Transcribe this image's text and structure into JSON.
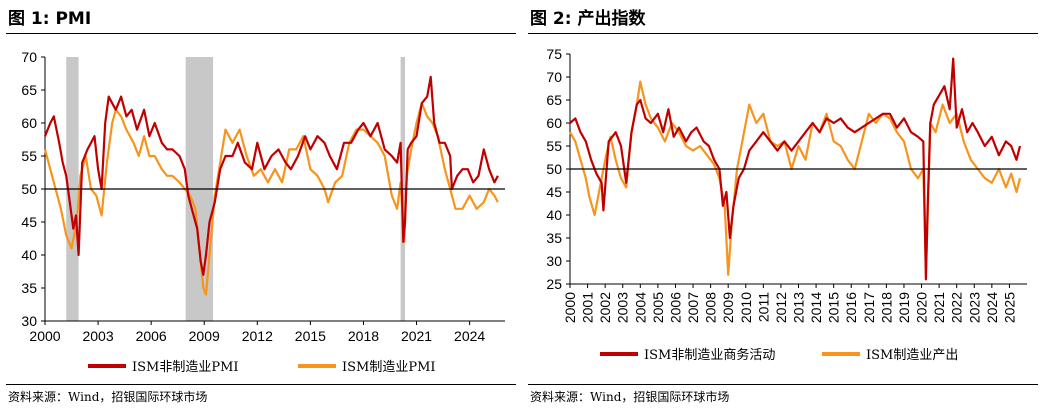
{
  "source_note": "资料来源：Wind，招银国际环球市场",
  "charts": [
    {
      "title": "图 1: PMI",
      "legend": [
        "ISM非制造业PMI",
        "ISM制造业PMI"
      ],
      "colors": {
        "series1": "#c00000",
        "series2": "#f7941d",
        "recession": "#c8c8c8",
        "axis": "#000000"
      }
    },
    {
      "title": "图 2: 产出指数",
      "legend": [
        "ISM非制造业商务活动",
        "ISM制造业产出"
      ],
      "colors": {
        "series1": "#c00000",
        "series2": "#f7941d",
        "axis": "#000000"
      }
    }
  ],
  "chart_data": [
    {
      "type": "line",
      "xlim": [
        2000,
        2026
      ],
      "ylim": [
        30,
        70
      ],
      "y_ticks": [
        30,
        35,
        40,
        45,
        50,
        55,
        60,
        65,
        70
      ],
      "x_ticks": [
        "2000",
        "2003",
        "2006",
        "2009",
        "2012",
        "2015",
        "2018",
        "2021",
        "2024"
      ],
      "x_tick_values": [
        2000,
        2003,
        2006,
        2009,
        2012,
        2015,
        2018,
        2021,
        2024
      ],
      "reference_line": 50,
      "recessions": [
        [
          2001.2,
          2001.9
        ],
        [
          2007.95,
          2009.5
        ],
        [
          2020.1,
          2020.35
        ]
      ],
      "series": [
        {
          "name": "ISM非制造业PMI",
          "x": [
            2000.0,
            2000.3,
            2000.5,
            2000.8,
            2001.0,
            2001.2,
            2001.4,
            2001.6,
            2001.75,
            2001.9,
            2002.1,
            2002.4,
            2002.8,
            2003.0,
            2003.2,
            2003.4,
            2003.6,
            2003.8,
            2004.0,
            2004.3,
            2004.6,
            2004.9,
            2005.2,
            2005.6,
            2005.9,
            2006.2,
            2006.6,
            2006.9,
            2007.2,
            2007.6,
            2007.9,
            2008.1,
            2008.3,
            2008.6,
            2008.8,
            2008.95,
            2009.1,
            2009.3,
            2009.6,
            2009.9,
            2010.2,
            2010.6,
            2010.9,
            2011.3,
            2011.7,
            2012.0,
            2012.4,
            2012.8,
            2013.2,
            2013.6,
            2013.9,
            2014.3,
            2014.7,
            2015.0,
            2015.4,
            2015.8,
            2016.1,
            2016.5,
            2016.9,
            2017.3,
            2017.7,
            2018.0,
            2018.4,
            2018.8,
            2019.2,
            2019.6,
            2019.9,
            2020.1,
            2020.25,
            2020.35,
            2020.5,
            2020.7,
            2021.0,
            2021.3,
            2021.6,
            2021.8,
            2022.0,
            2022.3,
            2022.6,
            2022.9,
            2023.0,
            2023.3,
            2023.6,
            2023.9,
            2024.2,
            2024.5,
            2024.8,
            2025.1,
            2025.4,
            2025.6
          ],
          "values": [
            58,
            60,
            61,
            57,
            54,
            52,
            48,
            44,
            46,
            40,
            54,
            56,
            58,
            53,
            50,
            60,
            64,
            63,
            62,
            64,
            61,
            62,
            59,
            62,
            58,
            60,
            57,
            56,
            56,
            55,
            53,
            49,
            47,
            44,
            39,
            37,
            40,
            45,
            48,
            53,
            55,
            55,
            57,
            54,
            53,
            57,
            53,
            55,
            56,
            54,
            53,
            55,
            58,
            56,
            58,
            57,
            55,
            53,
            57,
            57,
            59,
            60,
            58,
            60,
            56,
            55,
            54,
            57,
            42,
            45,
            56,
            57,
            58,
            63,
            64,
            67,
            60,
            57,
            57,
            55,
            50,
            52,
            53,
            53,
            51,
            52,
            56,
            53,
            51,
            52
          ]
        },
        {
          "name": "ISM制造业PMI",
          "x": [
            2000.0,
            2000.3,
            2000.6,
            2000.9,
            2001.2,
            2001.5,
            2001.8,
            2002.0,
            2002.3,
            2002.6,
            2002.9,
            2003.2,
            2003.5,
            2003.8,
            2004.0,
            2004.3,
            2004.6,
            2005.0,
            2005.3,
            2005.6,
            2005.9,
            2006.2,
            2006.6,
            2006.9,
            2007.2,
            2007.6,
            2007.9,
            2008.2,
            2008.5,
            2008.8,
            2008.95,
            2009.1,
            2009.3,
            2009.6,
            2009.9,
            2010.2,
            2010.6,
            2011.0,
            2011.4,
            2011.8,
            2012.2,
            2012.6,
            2013.0,
            2013.4,
            2013.8,
            2014.2,
            2014.6,
            2015.0,
            2015.4,
            2015.8,
            2016.0,
            2016.4,
            2016.8,
            2017.2,
            2017.6,
            2018.0,
            2018.4,
            2018.8,
            2019.2,
            2019.6,
            2019.9,
            2020.1,
            2020.3,
            2020.45,
            2020.7,
            2021.0,
            2021.3,
            2021.6,
            2021.9,
            2022.2,
            2022.6,
            2022.9,
            2023.2,
            2023.6,
            2024.0,
            2024.4,
            2024.8,
            2025.1,
            2025.4,
            2025.6
          ],
          "values": [
            56,
            53,
            50,
            47,
            43,
            41,
            45,
            52,
            55,
            50,
            49,
            46,
            54,
            60,
            62,
            61,
            59,
            57,
            55,
            58,
            55,
            55,
            53,
            52,
            52,
            51,
            50,
            49,
            47,
            39,
            35,
            34,
            40,
            49,
            54,
            59,
            57,
            59,
            55,
            52,
            53,
            51,
            53,
            51,
            56,
            56,
            58,
            53,
            52,
            50,
            48,
            51,
            52,
            57,
            59,
            59,
            58,
            57,
            55,
            49,
            47,
            51,
            42,
            52,
            56,
            60,
            63,
            61,
            60,
            58,
            53,
            50,
            47,
            47,
            49,
            47,
            48,
            50,
            49,
            48
          ]
        }
      ]
    },
    {
      "type": "line",
      "xlim": [
        2000,
        2026
      ],
      "ylim": [
        25,
        75
      ],
      "y_ticks": [
        25,
        30,
        35,
        40,
        45,
        50,
        55,
        60,
        65,
        70,
        75
      ],
      "x_ticks": [
        "2000",
        "2001",
        "2002",
        "2003",
        "2004",
        "2005",
        "2006",
        "2007",
        "2008",
        "2009",
        "2010",
        "2011",
        "2012",
        "2013",
        "2014",
        "2015",
        "2016",
        "2017",
        "2018",
        "2019",
        "2020",
        "2021",
        "2022",
        "2023",
        "2024",
        "2025"
      ],
      "x_tick_values": [
        2000,
        2001,
        2002,
        2003,
        2004,
        2005,
        2006,
        2007,
        2008,
        2009,
        2010,
        2011,
        2012,
        2013,
        2014,
        2015,
        2016,
        2017,
        2018,
        2019,
        2020,
        2021,
        2022,
        2023,
        2024,
        2025
      ],
      "reference_line": 50,
      "series": [
        {
          "name": "ISM非制造业商务活动",
          "x": [
            2000.0,
            2000.3,
            2000.6,
            2000.9,
            2001.2,
            2001.5,
            2001.8,
            2001.9,
            2002.2,
            2002.6,
            2002.9,
            2003.2,
            2003.5,
            2003.8,
            2004.0,
            2004.3,
            2004.6,
            2005.0,
            2005.3,
            2005.6,
            2005.9,
            2006.2,
            2006.6,
            2006.9,
            2007.2,
            2007.6,
            2007.9,
            2008.2,
            2008.5,
            2008.7,
            2008.9,
            2009.1,
            2009.3,
            2009.6,
            2009.9,
            2010.2,
            2010.6,
            2011.0,
            2011.4,
            2011.8,
            2012.2,
            2012.6,
            2013.0,
            2013.4,
            2013.8,
            2014.2,
            2014.6,
            2015.0,
            2015.4,
            2015.8,
            2016.2,
            2016.6,
            2017.0,
            2017.4,
            2017.8,
            2018.2,
            2018.6,
            2019.0,
            2019.4,
            2019.8,
            2020.1,
            2020.25,
            2020.35,
            2020.5,
            2020.7,
            2021.0,
            2021.3,
            2021.6,
            2021.8,
            2022.0,
            2022.3,
            2022.6,
            2022.9,
            2023.2,
            2023.6,
            2024.0,
            2024.4,
            2024.8,
            2025.1,
            2025.4,
            2025.6
          ],
          "values": [
            60,
            61,
            58,
            56,
            52,
            49,
            47,
            41,
            56,
            58,
            55,
            47,
            58,
            64,
            65,
            61,
            60,
            62,
            58,
            63,
            57,
            59,
            56,
            58,
            59,
            56,
            55,
            52,
            50,
            42,
            45,
            35,
            42,
            48,
            50,
            54,
            56,
            58,
            56,
            54,
            56,
            54,
            56,
            58,
            60,
            58,
            61,
            60,
            61,
            59,
            58,
            59,
            60,
            61,
            62,
            62,
            59,
            61,
            58,
            57,
            56,
            26,
            42,
            60,
            64,
            66,
            68,
            63,
            74,
            59,
            63,
            58,
            60,
            58,
            55,
            57,
            53,
            56,
            55,
            52,
            55
          ]
        },
        {
          "name": "ISM制造业产出",
          "x": [
            2000.0,
            2000.3,
            2000.6,
            2000.9,
            2001.1,
            2001.4,
            2001.7,
            2002.0,
            2002.3,
            2002.6,
            2002.9,
            2003.2,
            2003.5,
            2003.8,
            2004.0,
            2004.3,
            2004.6,
            2005.0,
            2005.4,
            2005.8,
            2006.2,
            2006.6,
            2007.0,
            2007.4,
            2007.8,
            2008.2,
            2008.5,
            2008.8,
            2009.0,
            2009.2,
            2009.5,
            2009.8,
            2010.2,
            2010.6,
            2011.0,
            2011.4,
            2011.8,
            2012.2,
            2012.6,
            2013.0,
            2013.4,
            2013.8,
            2014.2,
            2014.6,
            2015.0,
            2015.4,
            2015.8,
            2016.2,
            2016.6,
            2017.0,
            2017.4,
            2017.8,
            2018.2,
            2018.6,
            2019.0,
            2019.4,
            2019.8,
            2020.1,
            2020.25,
            2020.35,
            2020.5,
            2020.8,
            2021.2,
            2021.6,
            2022.0,
            2022.4,
            2022.8,
            2023.2,
            2023.6,
            2024.0,
            2024.4,
            2024.8,
            2025.1,
            2025.4,
            2025.6
          ],
          "values": [
            58,
            56,
            52,
            48,
            44,
            40,
            46,
            52,
            57,
            52,
            48,
            46,
            58,
            64,
            69,
            64,
            61,
            59,
            56,
            60,
            58,
            55,
            54,
            55,
            53,
            51,
            48,
            42,
            27,
            38,
            50,
            56,
            64,
            60,
            62,
            56,
            55,
            56,
            50,
            55,
            52,
            60,
            58,
            62,
            56,
            55,
            52,
            50,
            56,
            62,
            60,
            62,
            61,
            58,
            56,
            50,
            48,
            50,
            28,
            40,
            60,
            58,
            64,
            60,
            62,
            56,
            52,
            50,
            48,
            47,
            50,
            46,
            49,
            45,
            48
          ]
        }
      ]
    }
  ]
}
